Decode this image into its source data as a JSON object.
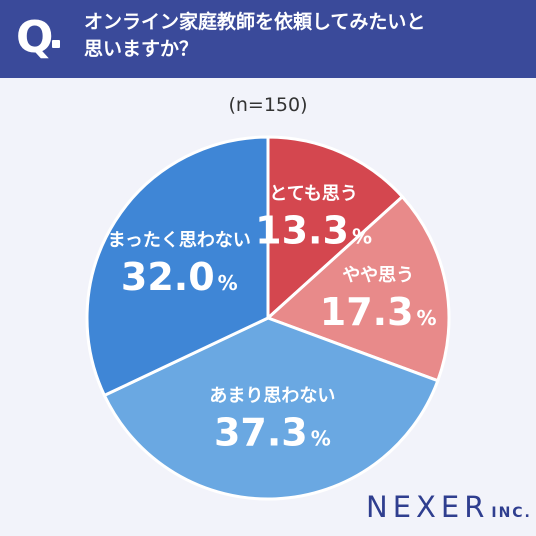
{
  "question": {
    "mark": "Q",
    "text_line1": "オンライン家庭教師を依頼してみたいと",
    "text_line2": "思いますか？"
  },
  "sample_size": "(n=150)",
  "colors": {
    "header_bg": "#3a4a9a",
    "background": "#f2f3fa"
  },
  "chart_data": {
    "type": "pie",
    "start_angle_deg": 0,
    "direction": "clockwise",
    "unit": "%",
    "slices": [
      {
        "label": "とても思う",
        "value": 13.3,
        "value_text": "13.3",
        "color": "#d4474f"
      },
      {
        "label": "やや思う",
        "value": 17.3,
        "value_text": "17.3",
        "color": "#e88a8a"
      },
      {
        "label": "あまり思わない",
        "value": 37.3,
        "value_text": "37.3",
        "color": "#6aa8e2"
      },
      {
        "label": "まったく思わない",
        "value": 32.0,
        "value_text": "32.0",
        "color": "#3f86d6"
      }
    ]
  },
  "logo": {
    "main": "NEXER",
    "sub": "INC."
  }
}
